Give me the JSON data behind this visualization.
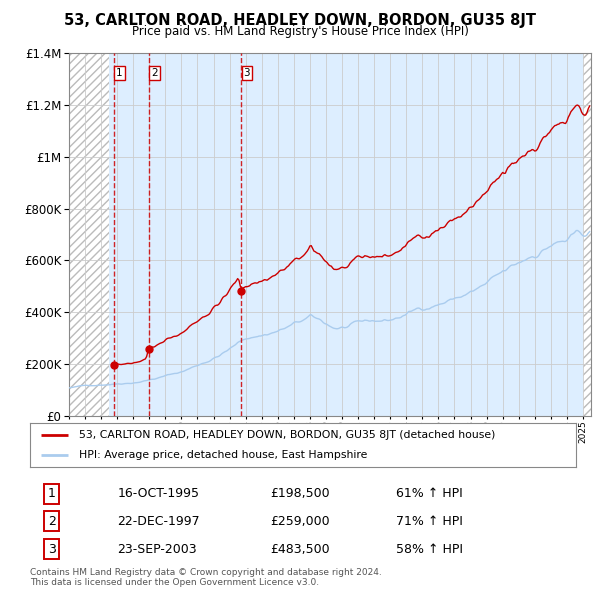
{
  "title": "53, CARLTON ROAD, HEADLEY DOWN, BORDON, GU35 8JT",
  "subtitle": "Price paid vs. HM Land Registry's House Price Index (HPI)",
  "legend_line1": "53, CARLTON ROAD, HEADLEY DOWN, BORDON, GU35 8JT (detached house)",
  "legend_line2": "HPI: Average price, detached house, East Hampshire",
  "transactions": [
    {
      "num": 1,
      "date": "16-OCT-1995",
      "price": 198500,
      "pct": "61%",
      "year": 1995.79
    },
    {
      "num": 2,
      "date": "22-DEC-1997",
      "price": 259000,
      "pct": "71%",
      "year": 1997.97
    },
    {
      "num": 3,
      "date": "23-SEP-2003",
      "price": 483500,
      "pct": "58%",
      "year": 2003.72
    }
  ],
  "footer_line1": "Contains HM Land Registry data © Crown copyright and database right 2024.",
  "footer_line2": "This data is licensed under the Open Government Licence v3.0.",
  "red_color": "#cc0000",
  "blue_color": "#aaccee",
  "grid_color": "#cccccc",
  "background_color": "#ddeeff",
  "ylim": [
    0,
    1400000
  ],
  "xmin": 1993,
  "xmax": 2025.5,
  "hatch_left_end": 1995.5,
  "hatch_right_start": 2025.0
}
